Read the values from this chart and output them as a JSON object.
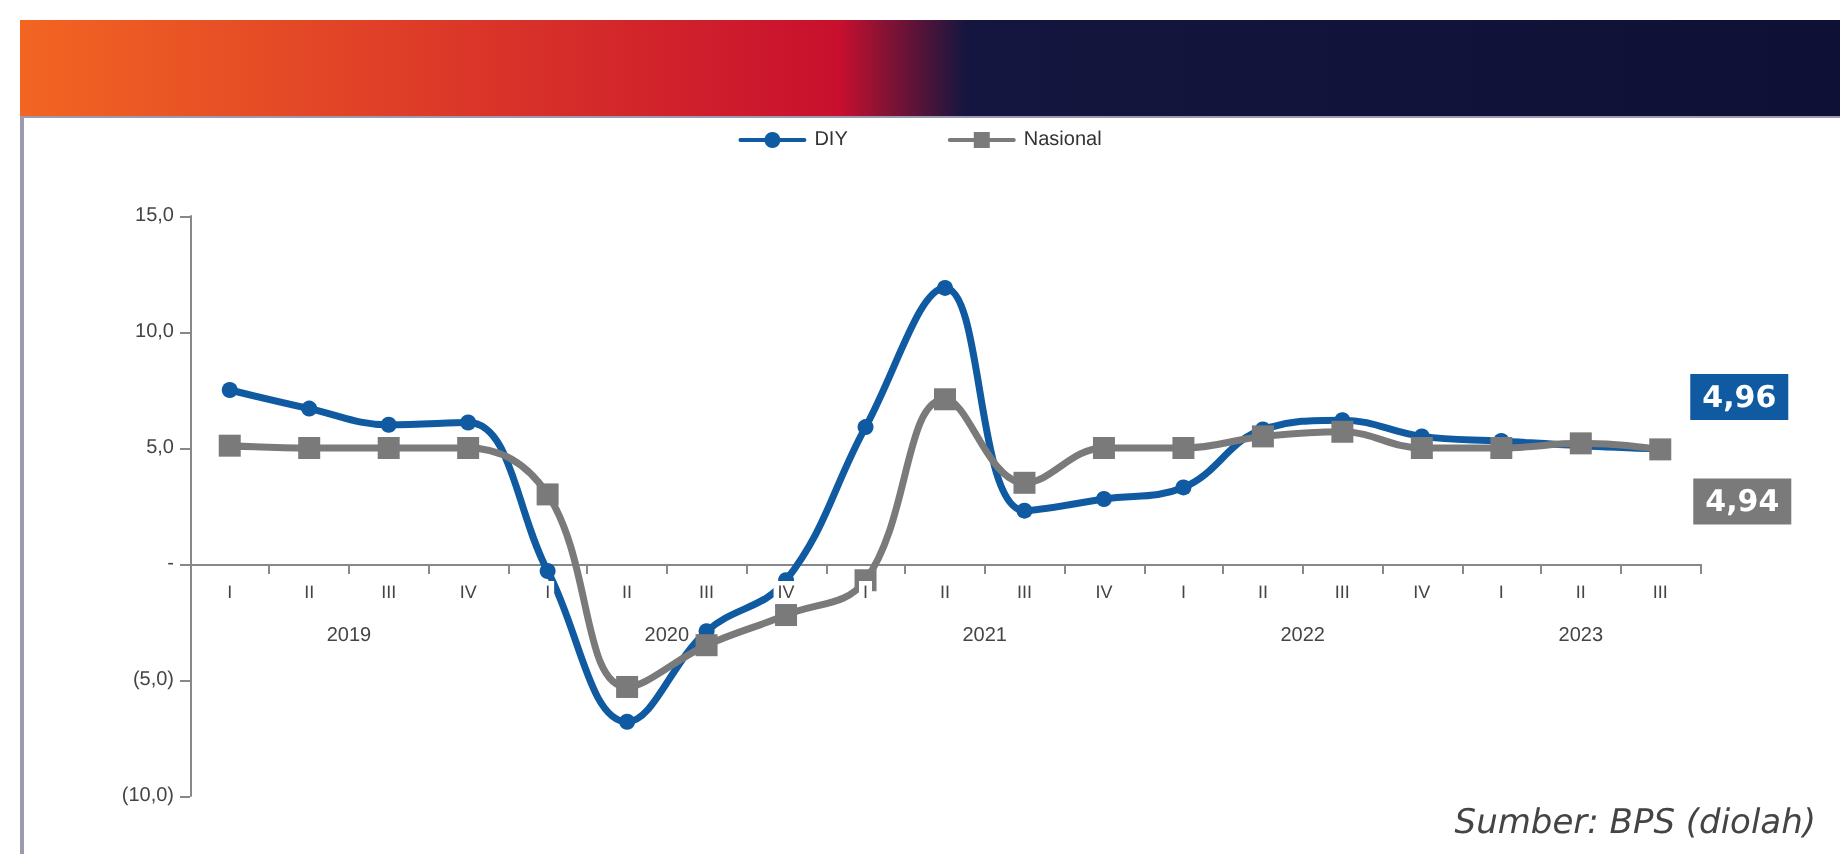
{
  "chart_data": {
    "type": "line",
    "categories": [
      "I",
      "II",
      "III",
      "IV",
      "I",
      "II",
      "III",
      "IV",
      "I",
      "II",
      "III",
      "IV",
      "I",
      "II",
      "III",
      "IV",
      "I",
      "II",
      "III"
    ],
    "series": [
      {
        "name": "DIY",
        "color": "#0f5aa0",
        "marker": "circle",
        "values": [
          7.5,
          6.7,
          6.0,
          6.1,
          -0.3,
          -6.8,
          -2.9,
          -0.7,
          5.9,
          11.9,
          2.3,
          2.8,
          3.3,
          5.8,
          6.2,
          5.5,
          5.3,
          5.1,
          4.96
        ],
        "value_labels": [
          null,
          null,
          null,
          null,
          null,
          null,
          null,
          null,
          null,
          null,
          null,
          null,
          null,
          null,
          null,
          null,
          null,
          null,
          "4,96"
        ]
      },
      {
        "name": "Nasional",
        "color": "#7a7a7a",
        "marker": "square",
        "values": [
          5.1,
          5.0,
          5.0,
          5.0,
          3.0,
          -5.3,
          -3.5,
          -2.2,
          -0.7,
          7.1,
          3.5,
          5.0,
          5.0,
          5.5,
          5.7,
          5.0,
          5.0,
          5.2,
          4.94
        ],
        "value_labels": [
          null,
          null,
          null,
          null,
          null,
          null,
          null,
          null,
          null,
          null,
          null,
          null,
          null,
          null,
          null,
          null,
          null,
          null,
          "4,94"
        ]
      }
    ],
    "ylim": [
      -10,
      15
    ],
    "yticks": [
      {
        "value": -10,
        "label": "(10,0)"
      },
      {
        "value": -5,
        "label": "(5,0)"
      },
      {
        "value": 0,
        "label": "-"
      },
      {
        "value": 5,
        "label": "5,0"
      },
      {
        "value": 10,
        "label": "10,0"
      },
      {
        "value": 15,
        "label": "15,0"
      }
    ],
    "annotations": [
      "2019",
      "2020",
      "2021",
      "2022",
      "2023",
      "Sumber: BPS (diolah)"
    ],
    "grid": false,
    "legend": "top",
    "line_style": "solid"
  }
}
